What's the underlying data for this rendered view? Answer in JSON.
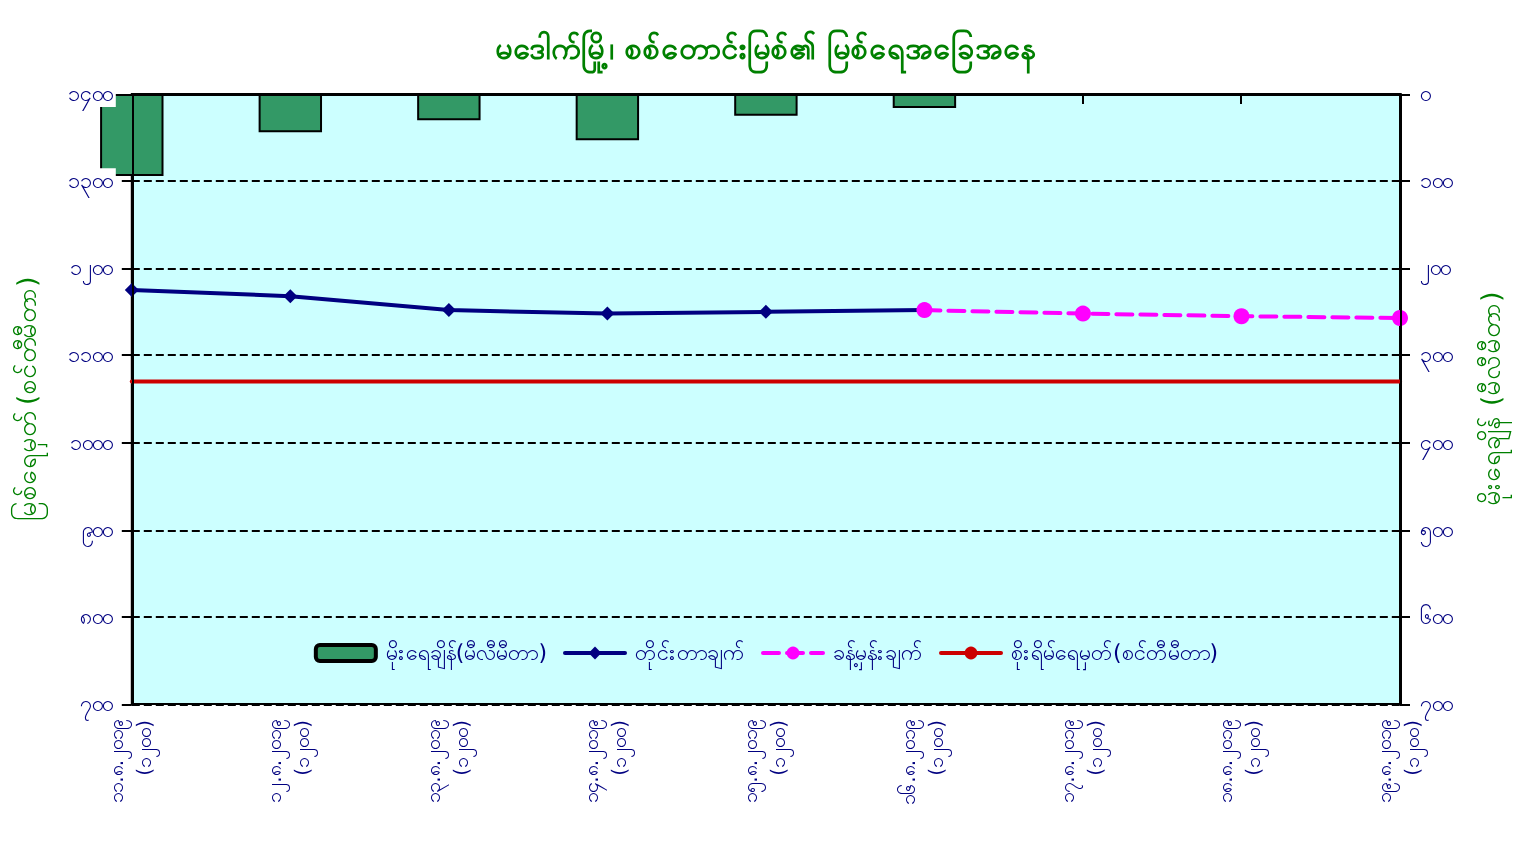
{
  "chart_data": {
    "type": "bar",
    "title": "မဒေါက်မြို့၊ စစ်တောင်းမြစ်၏ မြစ်ရေအခြေအနေ",
    "ylabel": "မြစ်ရေမှတ် (စင်တီမီတာ)",
    "y2label": "မိုးရေချိန် (မီလီမီတာ)",
    "categories": [
      "၁၁.၈.၂၀၁၉\n(၁၂၀၀)",
      "၁၂.၈.၂၀၁၉\n(၁၂၀၀)",
      "၁၃.၈.၂၀၁၉\n(၁၂၀၀)",
      "၁၄.၈.၂၀၁၉\n(၁၂၀၀)",
      "၁၅.၈.၂၀၁၉\n(၁၂၀၀)",
      "၁၆.၈.၂၀၁၉\n(၁၂၀၀)",
      "၁၇.၈.၂၀၁၉\n(၁၂၀၀)",
      "၁၈.၈.၂၀၁၉\n(၁၂၀၀)",
      "၁၉.၈.၂၀၁၉\n(၁၂၀၀)"
    ],
    "series": [
      {
        "name": "မိုးရေချိန်(မီလီမီတာ)",
        "axis": "y2",
        "color": "#339966",
        "values": [
          94,
          44,
          30,
          53,
          25,
          16,
          null,
          null,
          null
        ]
      },
      {
        "name": "တိုင်းတာချက်",
        "type": "line",
        "color": "#000080",
        "marker": "diamond",
        "line_style": "solid",
        "values": [
          1175,
          1168,
          1152,
          1148,
          1150,
          1152,
          null,
          null,
          null
        ]
      },
      {
        "name": "ခန့်မှန်းချက်",
        "type": "line",
        "color": "#ff00ff",
        "marker": "circle",
        "line_style": "dashed",
        "values": [
          null,
          null,
          null,
          null,
          null,
          1152,
          1148,
          1145,
          1143
        ]
      },
      {
        "name": "စိုးရိမ်ရေမှတ်(စင်တီမီတာ)",
        "type": "line",
        "color": "#cc0000",
        "marker": "none",
        "line_style": "solid",
        "values": [
          1070,
          1070,
          1070,
          1070,
          1070,
          1070,
          1070,
          1070,
          1070
        ]
      }
    ],
    "ylim": [
      700,
      1400
    ],
    "yticks": [
      {
        "value": 700,
        "label": "၇၀၀"
      },
      {
        "value": 800,
        "label": "၈၀၀"
      },
      {
        "value": 900,
        "label": "၉၀၀"
      },
      {
        "value": 1000,
        "label": "၁၀၀၀"
      },
      {
        "value": 1100,
        "label": "၁၁၀၀"
      },
      {
        "value": 1200,
        "label": "၁၂၀၀"
      },
      {
        "value": 1300,
        "label": "၁၃၀၀"
      },
      {
        "value": 1400,
        "label": "၁၄၀၀"
      }
    ],
    "y2lim": [
      700,
      0
    ],
    "y2ticks": [
      {
        "value": 0,
        "label": "၀"
      },
      {
        "value": 100,
        "label": "၁၀၀"
      },
      {
        "value": 200,
        "label": "၂၀၀"
      },
      {
        "value": 300,
        "label": "၃၀၀"
      },
      {
        "value": 400,
        "label": "၄၀၀"
      },
      {
        "value": 500,
        "label": "၅၀၀"
      },
      {
        "value": 600,
        "label": "၆၀၀"
      },
      {
        "value": 700,
        "label": "၇၀၀"
      }
    ],
    "grid": "y",
    "legend": "bottom"
  }
}
